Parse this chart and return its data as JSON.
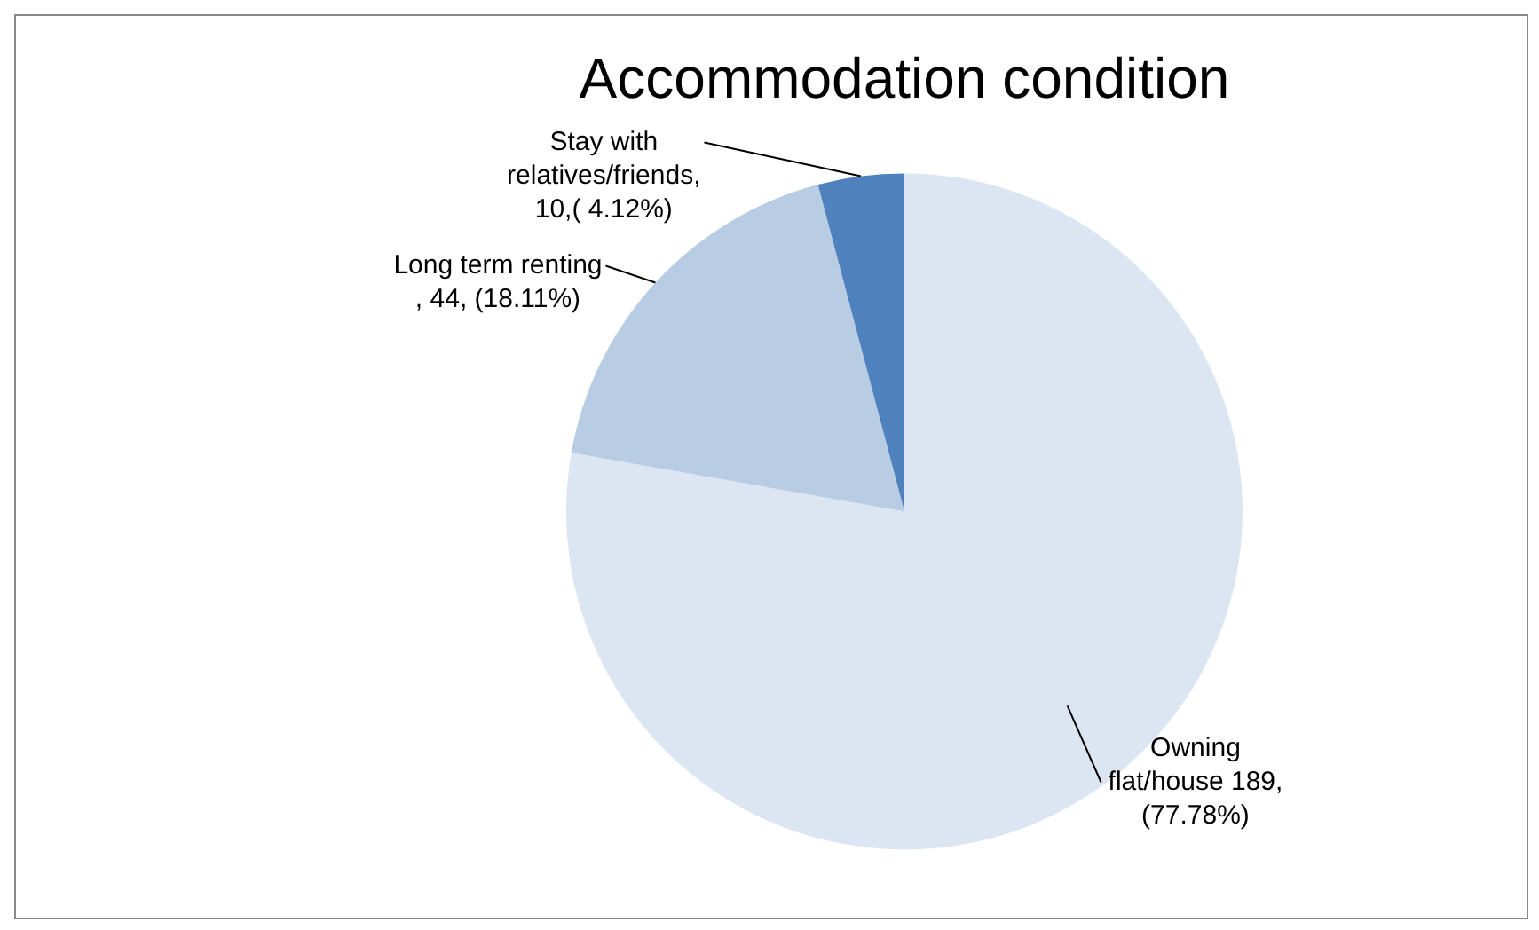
{
  "chart_data": {
    "type": "pie",
    "title": "Accommodation condition",
    "categories": [
      "Owning flat/house",
      "Long term renting ",
      "Stay with relatives/friends"
    ],
    "values": [
      189,
      44,
      10
    ],
    "value_labels": [
      "189, (77.78%)",
      ", 44, (18.11%)",
      ", 10,( 4.12%)"
    ],
    "colors": [
      "#dce6f2",
      "#b8cce4",
      "#4f81bd"
    ],
    "legend": false
  }
}
